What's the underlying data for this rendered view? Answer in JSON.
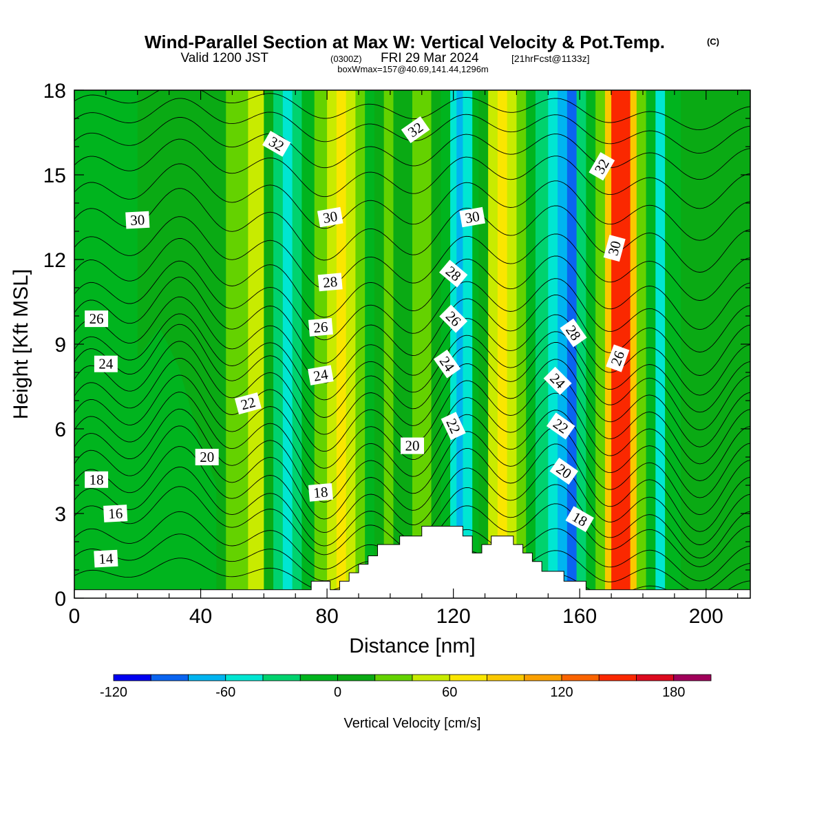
{
  "header": {
    "title": "Wind-Parallel Section at Max W: Vertical Velocity & Pot.Temp.",
    "copyright": "(C)",
    "valid_prefix": "Valid 1200 JST",
    "valid_zulu": "(0300Z)",
    "valid_date": "FRI 29 Mar 2024",
    "forecast": "[21hrFcst@1133z]",
    "boxwmax": "boxWmax=157@40.69,141.44,1296m"
  },
  "chart_data": {
    "type": "heatmap",
    "xlabel": "Distance [nm]",
    "ylabel": "Height [Kft MSL]",
    "xlim": [
      0,
      214
    ],
    "ylim": [
      0,
      18
    ],
    "xticks": [
      "0",
      "40",
      "80",
      "120",
      "160",
      "200"
    ],
    "yticks": [
      "0",
      "3",
      "6",
      "9",
      "12",
      "15",
      "18"
    ],
    "shaded_field": "Vertical Velocity [cm/s]",
    "colorbar": {
      "label": "Vertical Velocity [cm/s]",
      "levels": [
        -120,
        -100,
        -80,
        -60,
        -40,
        -20,
        0,
        20,
        40,
        60,
        80,
        100,
        120,
        140,
        160,
        180,
        200
      ],
      "tick_labels": [
        "-120",
        "-60",
        "0",
        "60",
        "120",
        "180"
      ],
      "tick_values": [
        -120,
        -60,
        0,
        60,
        120,
        180
      ],
      "colors": [
        "#0000f0",
        "#0a64f0",
        "#00b4f0",
        "#00e6d2",
        "#00d26e",
        "#00b41e",
        "#0aaa14",
        "#64d200",
        "#c8eb00",
        "#fae600",
        "#fac800",
        "#faa000",
        "#fa6400",
        "#fa2800",
        "#dc0a1e",
        "#a0005a",
        "#6e0096"
      ]
    },
    "w_bands": [
      {
        "x": 0,
        "w": -10
      },
      {
        "x": 10,
        "w": -5
      },
      {
        "x": 20,
        "w": 0
      },
      {
        "x": 30,
        "w": 5
      },
      {
        "x": 40,
        "w": 10
      },
      {
        "x": 48,
        "w": 25
      },
      {
        "x": 55,
        "w": 40
      },
      {
        "x": 60,
        "w": 15
      },
      {
        "x": 63,
        "w": -30
      },
      {
        "x": 66,
        "w": -50
      },
      {
        "x": 69,
        "w": -30
      },
      {
        "x": 72,
        "w": -5
      },
      {
        "x": 76,
        "w": 20
      },
      {
        "x": 80,
        "w": 45
      },
      {
        "x": 83,
        "w": 70
      },
      {
        "x": 86,
        "w": 55
      },
      {
        "x": 89,
        "w": 20
      },
      {
        "x": 92,
        "w": -5
      },
      {
        "x": 95,
        "w": 10
      },
      {
        "x": 98,
        "w": 30
      },
      {
        "x": 101,
        "w": 15
      },
      {
        "x": 104,
        "w": 5
      },
      {
        "x": 107,
        "w": 25
      },
      {
        "x": 110,
        "w": 35
      },
      {
        "x": 113,
        "w": 10
      },
      {
        "x": 116,
        "w": -15
      },
      {
        "x": 119,
        "w": -50
      },
      {
        "x": 121,
        "w": -75
      },
      {
        "x": 123,
        "w": -55
      },
      {
        "x": 126,
        "w": -20
      },
      {
        "x": 128,
        "w": 15
      },
      {
        "x": 131,
        "w": 45
      },
      {
        "x": 134,
        "w": 70
      },
      {
        "x": 137,
        "w": 50
      },
      {
        "x": 140,
        "w": 20
      },
      {
        "x": 143,
        "w": -10
      },
      {
        "x": 146,
        "w": -40
      },
      {
        "x": 150,
        "w": -60
      },
      {
        "x": 153,
        "w": -75
      },
      {
        "x": 156,
        "w": -90
      },
      {
        "x": 159,
        "w": -40
      },
      {
        "x": 162,
        "w": -10
      },
      {
        "x": 165,
        "w": 30
      },
      {
        "x": 168,
        "w": 90
      },
      {
        "x": 170,
        "w": 140
      },
      {
        "x": 172,
        "w": 157
      },
      {
        "x": 174,
        "w": 140
      },
      {
        "x": 176,
        "w": 90
      },
      {
        "x": 178,
        "w": 30
      },
      {
        "x": 181,
        "w": -20
      },
      {
        "x": 184,
        "w": -45
      },
      {
        "x": 187,
        "w": -20
      },
      {
        "x": 192,
        "w": 0
      },
      {
        "x": 200,
        "w": 5
      },
      {
        "x": 208,
        "w": 0
      },
      {
        "x": 214,
        "w": 10
      }
    ],
    "low_region": {
      "xmax": 45,
      "w": -10,
      "profile": [
        {
          "x": 0,
          "y": 6.8
        },
        {
          "x": 10,
          "y": 6.5
        },
        {
          "x": 20,
          "y": 8.5
        },
        {
          "x": 27,
          "y": 9.6
        },
        {
          "x": 33,
          "y": 8.2
        },
        {
          "x": 40,
          "y": 5.5
        },
        {
          "x": 45,
          "y": 4
        }
      ]
    },
    "terrain": [
      {
        "x": 0,
        "y": 0.3
      },
      {
        "x": 75,
        "y": 0.3
      },
      {
        "x": 75,
        "y": 0.6
      },
      {
        "x": 81,
        "y": 0.6
      },
      {
        "x": 81,
        "y": 0.3
      },
      {
        "x": 84,
        "y": 0.3
      },
      {
        "x": 84,
        "y": 0.6
      },
      {
        "x": 87,
        "y": 0.6
      },
      {
        "x": 87,
        "y": 0.9
      },
      {
        "x": 90,
        "y": 0.9
      },
      {
        "x": 90,
        "y": 1.2
      },
      {
        "x": 93,
        "y": 1.2
      },
      {
        "x": 93,
        "y": 1.5
      },
      {
        "x": 96,
        "y": 1.5
      },
      {
        "x": 96,
        "y": 1.9
      },
      {
        "x": 103,
        "y": 1.9
      },
      {
        "x": 103,
        "y": 2.2
      },
      {
        "x": 110,
        "y": 2.2
      },
      {
        "x": 110,
        "y": 2.55
      },
      {
        "x": 123,
        "y": 2.55
      },
      {
        "x": 123,
        "y": 2.2
      },
      {
        "x": 126,
        "y": 2.2
      },
      {
        "x": 126,
        "y": 1.6
      },
      {
        "x": 129,
        "y": 1.6
      },
      {
        "x": 129,
        "y": 1.9
      },
      {
        "x": 132,
        "y": 1.9
      },
      {
        "x": 132,
        "y": 2.2
      },
      {
        "x": 139,
        "y": 2.2
      },
      {
        "x": 139,
        "y": 1.9
      },
      {
        "x": 142,
        "y": 1.9
      },
      {
        "x": 142,
        "y": 1.6
      },
      {
        "x": 145,
        "y": 1.6
      },
      {
        "x": 145,
        "y": 1.3
      },
      {
        "x": 148,
        "y": 1.3
      },
      {
        "x": 148,
        "y": 0.95
      },
      {
        "x": 155,
        "y": 0.95
      },
      {
        "x": 155,
        "y": 0.6
      },
      {
        "x": 162,
        "y": 0.6
      },
      {
        "x": 162,
        "y": 0.3
      },
      {
        "x": 214,
        "y": 0.3
      }
    ],
    "theta_contours": [
      {
        "base": 0.6,
        "amp": 0.45,
        "label": "14",
        "lx": 10,
        "ly": 1.4,
        "ang": -3
      },
      {
        "base": 1.2,
        "amp": 0.65,
        "label": "",
        "lx": 0,
        "ly": 0,
        "ang": 0
      },
      {
        "base": 1.8,
        "amp": 0.8,
        "label": "",
        "lx": 0,
        "ly": 0,
        "ang": 0
      },
      {
        "base": 2.5,
        "amp": 0.95,
        "label": "",
        "lx": 0,
        "ly": 0,
        "ang": 0
      },
      {
        "base": 3.0,
        "amp": 1.1,
        "label": "16",
        "lx": 13,
        "ly": 3.0,
        "ang": -3
      },
      {
        "base": 3.6,
        "amp": 1.2,
        "label": "",
        "lx": 0,
        "ly": 0,
        "ang": 0
      },
      {
        "base": 4.2,
        "amp": 1.3,
        "label": "18",
        "lx": 7,
        "ly": 4.2,
        "ang": 0
      },
      {
        "base": 4.8,
        "amp": 1.3,
        "label": "",
        "lx": 0,
        "ly": 0,
        "ang": 0
      },
      {
        "base": 5.4,
        "amp": 1.3,
        "label": "20",
        "lx": 42,
        "ly": 5.0,
        "ang": 0
      },
      {
        "base": 6.0,
        "amp": 1.3,
        "label": "",
        "lx": 0,
        "ly": 0,
        "ang": 0
      },
      {
        "base": 6.6,
        "amp": 1.3,
        "label": "",
        "lx": 0,
        "ly": 0,
        "ang": 0
      },
      {
        "base": 7.2,
        "amp": 1.3,
        "label": "22",
        "lx": 55,
        "ly": 6.9,
        "ang": -15
      },
      {
        "base": 7.8,
        "amp": 1.3,
        "label": "",
        "lx": 0,
        "ly": 0,
        "ang": 0
      },
      {
        "base": 8.3,
        "amp": 1.2,
        "label": "24",
        "lx": 10,
        "ly": 8.3,
        "ang": 0
      },
      {
        "base": 8.9,
        "amp": 1.2,
        "label": "",
        "lx": 0,
        "ly": 0,
        "ang": 0
      },
      {
        "base": 9.6,
        "amp": 1.2,
        "label": "26",
        "lx": 7,
        "ly": 9.9,
        "ang": 0
      },
      {
        "base": 10.3,
        "amp": 1.1,
        "label": "",
        "lx": 0,
        "ly": 0,
        "ang": 0
      },
      {
        "base": 11.1,
        "amp": 1.1,
        "label": "28",
        "lx": 81,
        "ly": 11.2,
        "ang": -5
      },
      {
        "base": 12.0,
        "amp": 1.0,
        "label": "",
        "lx": 0,
        "ly": 0,
        "ang": 0
      },
      {
        "base": 13.0,
        "amp": 1.0,
        "label": "30",
        "lx": 20,
        "ly": 13.4,
        "ang": -3
      },
      {
        "base": 14.0,
        "amp": 0.9,
        "label": "",
        "lx": 0,
        "ly": 0,
        "ang": 0
      },
      {
        "base": 15.0,
        "amp": 0.8,
        "label": "",
        "lx": 0,
        "ly": 0,
        "ang": 0
      },
      {
        "base": 15.9,
        "amp": 0.7,
        "label": "32",
        "lx": 64,
        "ly": 16.1,
        "ang": 30
      },
      {
        "base": 16.7,
        "amp": 0.6,
        "label": "",
        "lx": 0,
        "ly": 0,
        "ang": 0
      },
      {
        "base": 17.4,
        "amp": 0.5,
        "label": "",
        "lx": 0,
        "ly": 0,
        "ang": 0
      }
    ],
    "extra_labels": [
      {
        "text": "18",
        "x": 78,
        "y": 3.75,
        "ang": -5
      },
      {
        "text": "26",
        "x": 78,
        "y": 9.6,
        "ang": -5
      },
      {
        "text": "24",
        "x": 78,
        "y": 7.9,
        "ang": -10
      },
      {
        "text": "30",
        "x": 81,
        "y": 13.5,
        "ang": -10
      },
      {
        "text": "32",
        "x": 108,
        "y": 16.6,
        "ang": -35
      },
      {
        "text": "30",
        "x": 126,
        "y": 13.5,
        "ang": -10
      },
      {
        "text": "28",
        "x": 120,
        "y": 11.5,
        "ang": 40
      },
      {
        "text": "26",
        "x": 120,
        "y": 9.9,
        "ang": 45
      },
      {
        "text": "24",
        "x": 118,
        "y": 8.3,
        "ang": 55
      },
      {
        "text": "22",
        "x": 120,
        "y": 6.1,
        "ang": 65
      },
      {
        "text": "20",
        "x": 107,
        "y": 5.4,
        "ang": 0
      },
      {
        "text": "28",
        "x": 158,
        "y": 9.4,
        "ang": 55
      },
      {
        "text": "24",
        "x": 153,
        "y": 7.7,
        "ang": 45
      },
      {
        "text": "22",
        "x": 154,
        "y": 6.1,
        "ang": 35
      },
      {
        "text": "20",
        "x": 155,
        "y": 4.5,
        "ang": 35
      },
      {
        "text": "18",
        "x": 160,
        "y": 2.8,
        "ang": 30
      },
      {
        "text": "32",
        "x": 167,
        "y": 15.3,
        "ang": -60
      },
      {
        "text": "30",
        "x": 171,
        "y": 12.4,
        "ang": -75
      },
      {
        "text": "26",
        "x": 172,
        "y": 8.5,
        "ang": -70
      }
    ]
  }
}
